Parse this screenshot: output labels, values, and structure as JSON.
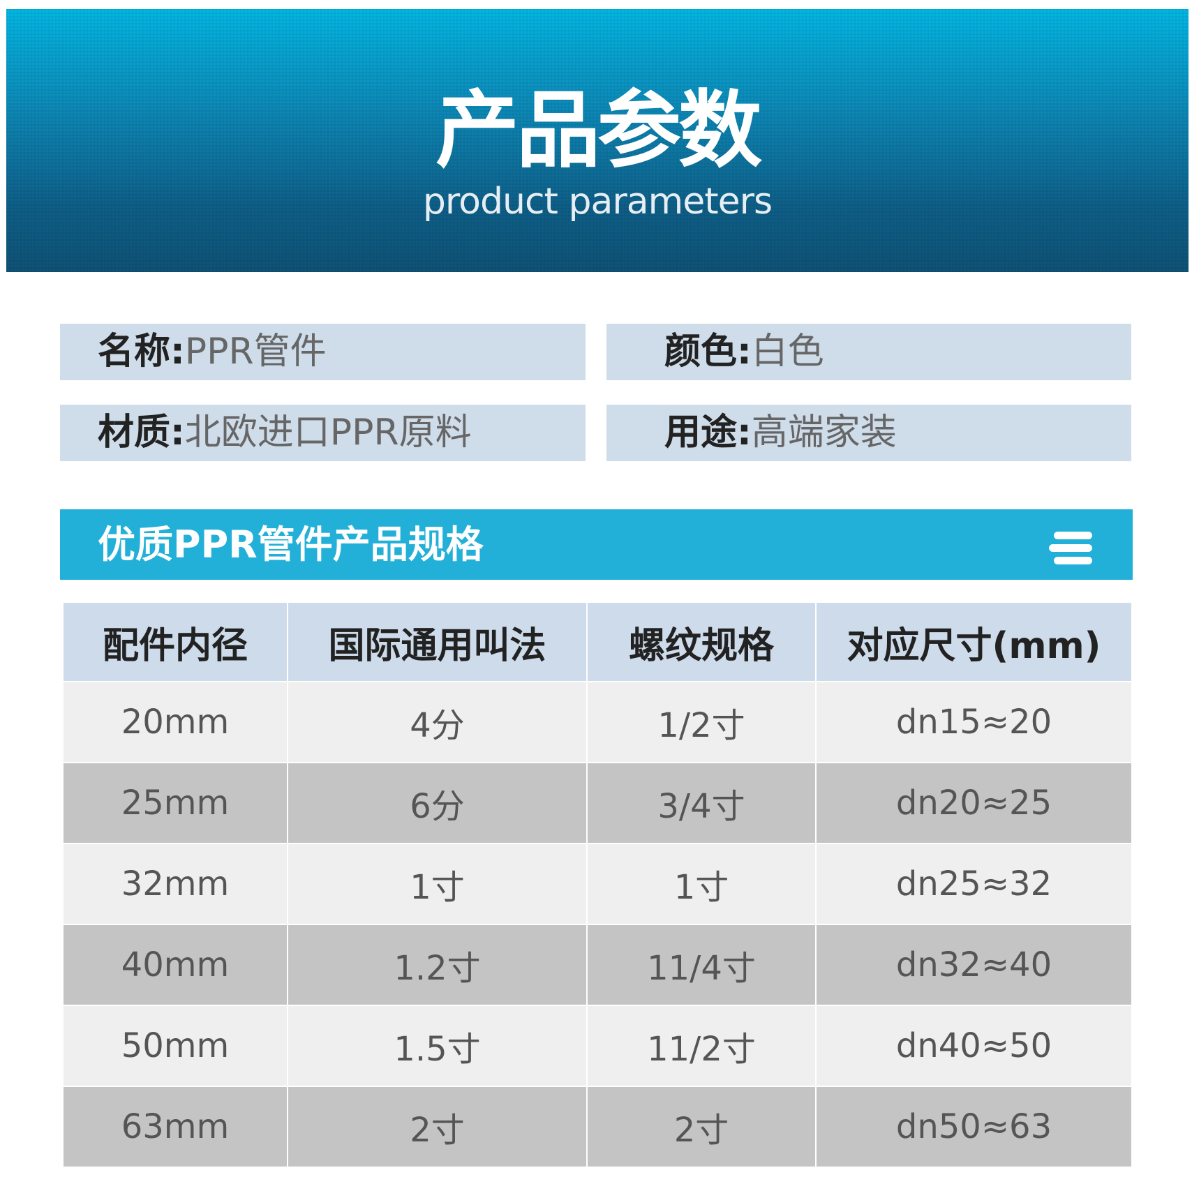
{
  "banner": {
    "title": "产品参数",
    "subtitle": "product parameters"
  },
  "info": [
    {
      "label": "名称:",
      "value": "PPR管件"
    },
    {
      "label": "颜色:",
      "value": "白色"
    },
    {
      "label": "材质:",
      "value": "北欧进口PPR原料"
    },
    {
      "label": "用途:",
      "value": "高端家装"
    }
  ],
  "spec": {
    "title": "优质PPR管件产品规格",
    "icon": "menu-icon"
  },
  "table": {
    "headers": [
      "配件内径",
      "国际通用叫法",
      "螺纹规格",
      "对应尺寸(mm)"
    ],
    "rows": [
      [
        "20mm",
        "4分",
        "1/2寸",
        "dn15≈20"
      ],
      [
        "25mm",
        "6分",
        "3/4寸",
        "dn20≈25"
      ],
      [
        "32mm",
        "1寸",
        "1寸",
        "dn25≈32"
      ],
      [
        "40mm",
        "1.2寸",
        "11/4寸",
        "dn32≈40"
      ],
      [
        "50mm",
        "1.5寸",
        "11/2寸",
        "dn40≈50"
      ],
      [
        "63mm",
        "2寸",
        "2寸",
        "dn50≈63"
      ]
    ]
  },
  "colors": {
    "banner_top": "#03b6e2",
    "banner_bottom": "#0f5276",
    "info_bg": "#cfdcea",
    "spec_bar": "#22b0d8",
    "header_bg": "#cddbeb",
    "row_light": "#efefef",
    "row_dark": "#c4c4c4"
  }
}
